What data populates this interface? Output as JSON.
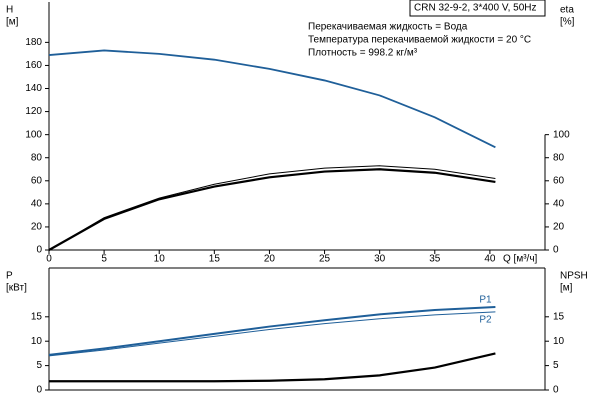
{
  "chart_data": [
    {
      "type": "line",
      "annotations": [
        "CRN 32-9-2, 3*400 V, 50Hz",
        "Перекачиваемая жидкость = Вода",
        "Температура перекачиваемой жидкости = 20 °C",
        "Плотность = 998.2 кг/м³"
      ],
      "xlabel": "Q [м³/ч]",
      "ylabel": [
        "H",
        "[м]"
      ],
      "y2label": [
        "eta",
        "[%]"
      ],
      "xlim": [
        0,
        45
      ],
      "xticks": [
        0,
        5,
        10,
        15,
        20,
        25,
        30,
        35,
        40
      ],
      "ylim": [
        0,
        215
      ],
      "yticks": [
        0,
        20,
        40,
        60,
        80,
        100,
        120,
        140,
        160,
        180
      ],
      "y2lim": [
        0,
        215
      ],
      "y2ticks": [
        0,
        20,
        40,
        60,
        80,
        100
      ],
      "series": [
        {
          "color": "#1f5f99",
          "width": 1.8,
          "x": [
            0,
            5,
            10,
            15,
            20,
            25,
            30,
            35,
            40.5
          ],
          "values": [
            169,
            173,
            170,
            165,
            157,
            147,
            134,
            115,
            89
          ]
        },
        {
          "color": "#000000",
          "width": 1,
          "axis": "y2",
          "x": [
            0,
            5,
            10,
            15,
            20,
            25,
            30,
            35,
            40.5
          ],
          "values": [
            0,
            28,
            45,
            57,
            66,
            71,
            73,
            70,
            62
          ]
        },
        {
          "color": "#000000",
          "width": 2.2,
          "axis": "y2",
          "x": [
            0,
            5,
            10,
            15,
            20,
            25,
            30,
            35,
            40.5
          ],
          "values": [
            0,
            27,
            44,
            55,
            63,
            68,
            70,
            67,
            59
          ]
        }
      ]
    },
    {
      "type": "line",
      "ylabel": [
        "P",
        "[кВт]"
      ],
      "y2label": [
        "NPSH",
        "[м]"
      ],
      "xlim": [
        0,
        45
      ],
      "ylim": [
        0,
        25
      ],
      "yticks": [
        0,
        5,
        10,
        15
      ],
      "y2lim": [
        0,
        25
      ],
      "y2ticks": [
        0,
        5,
        10,
        15
      ],
      "series": [
        {
          "name": "P1",
          "color": "#1f5f99",
          "width": 2,
          "x": [
            0,
            5,
            10,
            15,
            20,
            25,
            30,
            35,
            40.5
          ],
          "values": [
            7.2,
            8.5,
            10,
            11.5,
            13,
            14.3,
            15.5,
            16.4,
            17
          ]
        },
        {
          "name": "P2",
          "color": "#1f5f99",
          "width": 1,
          "x": [
            0,
            5,
            10,
            15,
            20,
            25,
            30,
            35,
            40.5
          ],
          "values": [
            7,
            8.2,
            9.6,
            11,
            12.4,
            13.6,
            14.6,
            15.4,
            16
          ]
        },
        {
          "color": "#000000",
          "width": 2.2,
          "axis": "y2",
          "x": [
            0,
            15,
            20,
            25,
            30,
            35,
            40.5
          ],
          "values": [
            1.8,
            1.8,
            1.9,
            2.2,
            3.0,
            4.6,
            7.5
          ]
        }
      ]
    }
  ]
}
